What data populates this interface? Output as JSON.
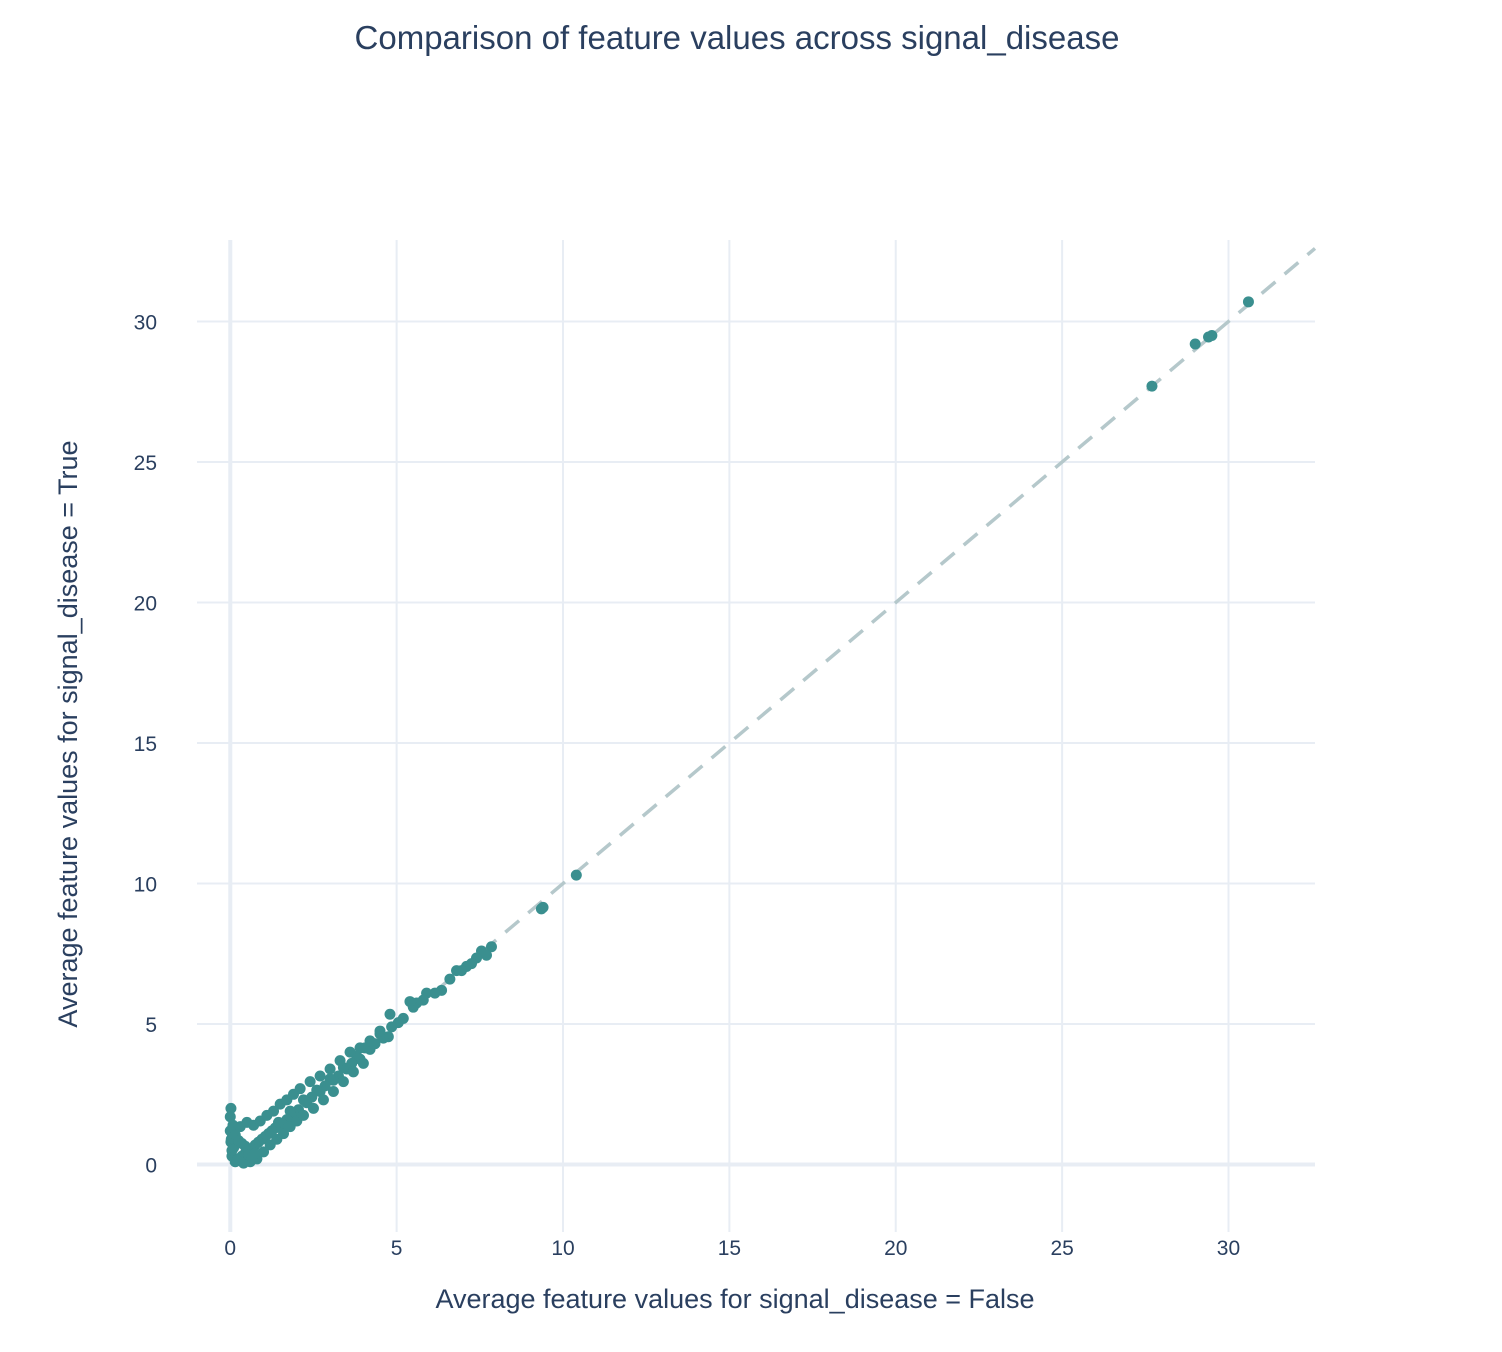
{
  "chart_data": {
    "type": "scatter",
    "title": "Comparison of feature values across signal_disease",
    "xlabel": "Average feature values for signal_disease = False",
    "ylabel": "Average feature values for signal_disease = True",
    "xlim": [
      -1,
      32.6
    ],
    "ylim": [
      -2.4,
      32.9
    ],
    "xticks": [
      0,
      5,
      10,
      15,
      20,
      25,
      30
    ],
    "yticks": [
      0,
      5,
      10,
      15,
      20,
      25,
      30
    ],
    "xtick_labels": [
      "0",
      "5",
      "10",
      "15",
      "20",
      "25",
      "30"
    ],
    "ytick_labels": [
      "0",
      "5",
      "10",
      "15",
      "20",
      "25",
      "30"
    ],
    "grid": true,
    "reference_line": {
      "style": "dashed",
      "from": [
        0,
        0
      ],
      "to": [
        32.6,
        32.6
      ],
      "color": "#b5c8cb"
    },
    "marker_color": "#3a8f8f",
    "series": [
      {
        "x": [
          30.6,
          29.5,
          29.4,
          29.0,
          27.7,
          10.4,
          9.4,
          9.35,
          7.85,
          7.7,
          7.55,
          7.4,
          7.25,
          7.1,
          6.95,
          6.8,
          6.6,
          6.35,
          6.15,
          5.9,
          5.8,
          5.6,
          5.5,
          5.4,
          5.2,
          5.05,
          4.85,
          4.75,
          4.6,
          4.5,
          4.35,
          4.2,
          4.05,
          3.9,
          3.8,
          3.65,
          3.5,
          3.4,
          3.25,
          3.1,
          3.0,
          2.85,
          2.7,
          2.6,
          2.45,
          2.3,
          2.2,
          2.05,
          1.9,
          1.8,
          1.7,
          1.55,
          1.45,
          1.35,
          1.25,
          1.15,
          1.05,
          0.95,
          0.85,
          0.75,
          0.65,
          0.55,
          0.45,
          0.35,
          0.25,
          0.15,
          0.05,
          0.02,
          0.0,
          0.08,
          0.12,
          0.3,
          0.5,
          0.7,
          0.9,
          1.1,
          1.3,
          1.5,
          1.7,
          1.9,
          2.1,
          2.4,
          2.7,
          3.0,
          3.3,
          3.6,
          3.9,
          4.2,
          4.5,
          4.8,
          0.02,
          0.05,
          0.1,
          0.2,
          0.4,
          0.6,
          0.8,
          1.0,
          1.2,
          1.4,
          1.6,
          1.8,
          2.0,
          2.2,
          2.5,
          2.8,
          3.1,
          3.4,
          3.7,
          4.0,
          0.0,
          0.03,
          0.06,
          0.15,
          0.25,
          0.35,
          0.45,
          0.55,
          0.65,
          0.75
        ],
        "y": [
          30.7,
          29.5,
          29.45,
          29.2,
          27.7,
          10.3,
          9.15,
          9.1,
          7.75,
          7.45,
          7.6,
          7.35,
          7.15,
          7.05,
          6.9,
          6.9,
          6.6,
          6.2,
          6.1,
          6.1,
          5.85,
          5.75,
          5.6,
          5.8,
          5.2,
          5.05,
          4.9,
          4.55,
          4.5,
          4.65,
          4.3,
          4.1,
          4.15,
          3.75,
          3.85,
          3.6,
          3.4,
          3.45,
          3.15,
          3.0,
          3.05,
          2.8,
          2.6,
          2.65,
          2.4,
          2.2,
          2.3,
          1.95,
          1.8,
          1.9,
          1.6,
          1.45,
          1.5,
          1.3,
          1.2,
          1.1,
          1.0,
          0.9,
          0.8,
          0.7,
          0.55,
          0.45,
          0.4,
          0.3,
          0.2,
          0.1,
          0.3,
          2.0,
          1.7,
          1.4,
          1.1,
          1.35,
          1.5,
          1.4,
          1.55,
          1.75,
          1.9,
          2.15,
          2.3,
          2.5,
          2.7,
          2.95,
          3.15,
          3.4,
          3.7,
          4.0,
          4.15,
          4.4,
          4.75,
          5.35,
          0.8,
          0.5,
          0.6,
          0.15,
          0.05,
          0.1,
          0.2,
          0.45,
          0.7,
          0.9,
          1.1,
          1.35,
          1.55,
          1.75,
          2.0,
          2.3,
          2.6,
          2.95,
          3.3,
          3.6,
          1.2,
          0.9,
          0.95,
          1.05,
          0.85,
          0.75,
          0.65,
          0.35,
          0.25,
          0.4
        ]
      }
    ]
  }
}
